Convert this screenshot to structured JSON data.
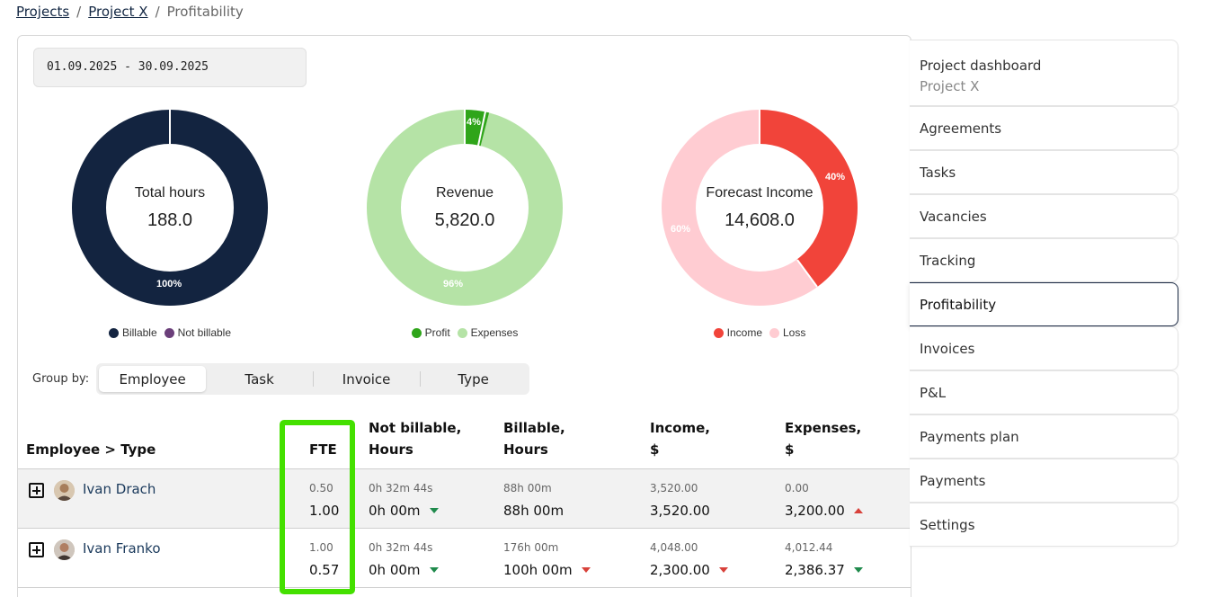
{
  "breadcrumb": {
    "projects": "Projects",
    "project": "Project X",
    "current": "Profitability",
    "sep": "/"
  },
  "date_range": "01.09.2025 - 30.09.2025",
  "charts": {
    "total_hours": {
      "title": "Total hours",
      "value": "188.0",
      "pct_label": "100%",
      "legend": [
        "Billable",
        "Not billable"
      ],
      "colors": [
        "#132440",
        "#6b3f7a"
      ]
    },
    "revenue": {
      "title": "Revenue",
      "value": "5,820.0",
      "pct_labels": [
        "4%",
        "96%"
      ],
      "legend": [
        "Profit",
        "Expenses"
      ],
      "colors": [
        "#2fa51a",
        "#b5e3a6"
      ]
    },
    "forecast": {
      "title": "Forecast Income",
      "value": "14,608.0",
      "pct_labels": [
        "40%",
        "60%"
      ],
      "legend": [
        "Income",
        "Loss"
      ],
      "colors": [
        "#f1443a",
        "#ffccd2"
      ]
    }
  },
  "chart_data": [
    {
      "type": "pie",
      "title": "Total hours",
      "categories": [
        "Billable",
        "Not billable"
      ],
      "values": [
        100,
        0
      ]
    },
    {
      "type": "pie",
      "title": "Revenue",
      "categories": [
        "Profit",
        "Expenses"
      ],
      "values": [
        4,
        96
      ]
    },
    {
      "type": "pie",
      "title": "Forecast Income",
      "categories": [
        "Income",
        "Loss"
      ],
      "values": [
        40,
        60
      ]
    }
  ],
  "groupby": {
    "label": "Group by:",
    "options": [
      "Employee",
      "Task",
      "Invoice",
      "Type"
    ],
    "active": "Employee"
  },
  "table": {
    "headers": {
      "employee": "Employee > Type",
      "fte": "FTE",
      "not_billable_1": "Not billable,",
      "not_billable_2": "Hours",
      "billable_1": "Billable,",
      "billable_2": "Hours",
      "income_1": "Income,",
      "income_2": "$",
      "expenses_1": "Expenses,",
      "expenses_2": "$"
    },
    "rows": [
      {
        "name": "Ivan Drach",
        "fte_sub": "0.50",
        "fte": "1.00",
        "nb_sub": "0h 32m 44s",
        "nb": "0h 00m",
        "b_sub": "88h 00m",
        "b": "88h 00m",
        "inc_sub": "3,520.00",
        "inc": "3,520.00",
        "exp_sub": "0.00",
        "exp": "3,200.00"
      },
      {
        "name": "Ivan Franko",
        "fte_sub": "1.00",
        "fte": "0.57",
        "nb_sub": "0h 32m 44s",
        "nb": "0h 00m",
        "b_sub": "176h 00m",
        "b": "100h 00m",
        "inc_sub": "4,048.00",
        "inc": "2,300.00",
        "exp_sub": "4,012.44",
        "exp": "2,386.37"
      }
    ]
  },
  "sidenav": {
    "dashboard": "Project dashboard",
    "dashboard_sub": "Project X",
    "items": [
      "Agreements",
      "Tasks",
      "Vacancies",
      "Tracking",
      "Profitability",
      "Invoices",
      "P&L",
      "Payments plan",
      "Payments",
      "Settings"
    ]
  }
}
